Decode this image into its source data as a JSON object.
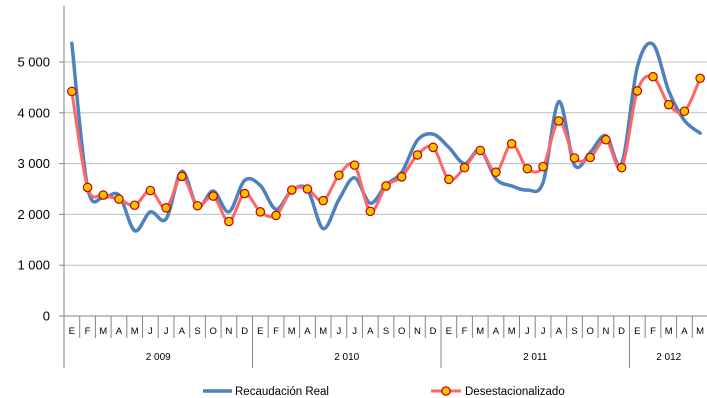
{
  "chart_data": {
    "type": "line",
    "title": "",
    "xlabel": "",
    "ylabel": "",
    "ylim": [
      0,
      5500
    ],
    "yticks": [
      0,
      1000,
      2000,
      3000,
      4000,
      5000
    ],
    "ytick_labels": [
      "0",
      "1 000",
      "2 000",
      "3 000",
      "4 000",
      "5 000"
    ],
    "month_letters": [
      "E",
      "F",
      "M",
      "A",
      "M",
      "J",
      "J",
      "A",
      "S",
      "O",
      "N",
      "D"
    ],
    "years": [
      {
        "label": "2 009",
        "months": 12
      },
      {
        "label": "2 010",
        "months": 12
      },
      {
        "label": "2 011",
        "months": 12
      },
      {
        "label": "2 012",
        "months": 5
      }
    ],
    "grid": "horizontal",
    "legend_position": "bottom",
    "series": [
      {
        "name": "Recaudación Real",
        "color": "#4f81bd",
        "smooth": true,
        "marker": "none",
        "values": [
          5370,
          2530,
          2330,
          2380,
          1680,
          2050,
          1910,
          2850,
          2150,
          2460,
          2050,
          2670,
          2570,
          2100,
          2470,
          2490,
          1720,
          2290,
          2720,
          2220,
          2580,
          2830,
          3460,
          3580,
          3320,
          3000,
          3270,
          2700,
          2560,
          2480,
          2630,
          4220,
          2970,
          3220,
          3550,
          3000,
          4900,
          5350,
          4430,
          3850,
          3600
        ]
      },
      {
        "name": "Desestacionalizado",
        "color": "#ff6666",
        "smooth": true,
        "marker": "circle",
        "marker_fill": "#ffc000",
        "marker_stroke": "#c00000",
        "values": [
          4420,
          2530,
          2380,
          2300,
          2180,
          2470,
          2130,
          2750,
          2170,
          2360,
          1860,
          2410,
          2050,
          1980,
          2480,
          2500,
          2270,
          2770,
          2970,
          2060,
          2560,
          2740,
          3170,
          3320,
          2690,
          2920,
          3260,
          2830,
          3390,
          2900,
          2940,
          3840,
          3110,
          3120,
          3470,
          2920,
          4430,
          4710,
          4160,
          4030,
          4680
        ]
      }
    ]
  }
}
